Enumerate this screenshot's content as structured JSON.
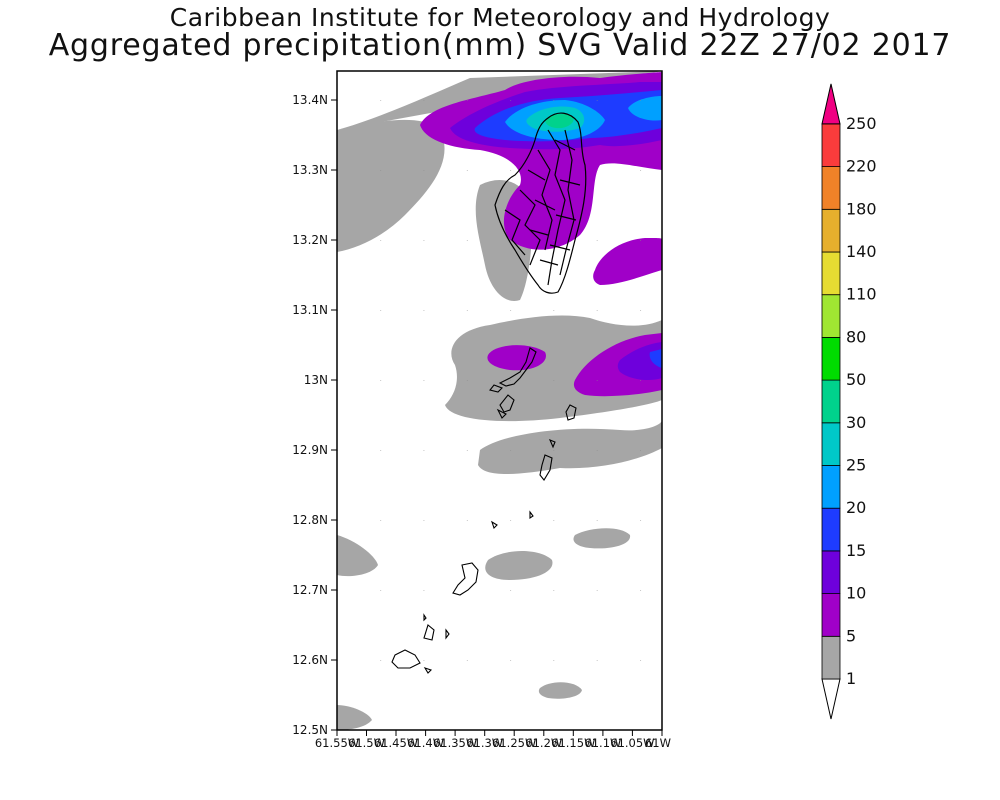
{
  "header": {
    "organization": "Caribbean Institute for Meteorology and Hydrology",
    "product": "Aggregated precipitation(mm) SVG Valid 22Z 27/02 2017"
  },
  "map": {
    "lat_ticks": [
      "13.4N",
      "13.3N",
      "13.2N",
      "13.1N",
      "13N",
      "12.9N",
      "12.8N",
      "12.7N",
      "12.6N",
      "12.5N"
    ],
    "lon_ticks": [
      "61.55W",
      "61.5W",
      "61.45W",
      "61.4W",
      "61.35W",
      "61.3W",
      "61.25W",
      "61.2W",
      "61.15W",
      "61.1W",
      "61.05W",
      "61W"
    ]
  },
  "legend": {
    "levels": [
      "1",
      "5",
      "10",
      "15",
      "20",
      "25",
      "30",
      "50",
      "80",
      "110",
      "140",
      "180",
      "220",
      "250"
    ],
    "colors": [
      "#a6a6a6",
      "#a000c8",
      "#6e00dc",
      "#1e3cff",
      "#00a0ff",
      "#00c8c8",
      "#00d28c",
      "#00dc00",
      "#a0e632",
      "#e6dc32",
      "#e6af2d",
      "#f08228",
      "#fa3c3c",
      "#f00082"
    ]
  }
}
